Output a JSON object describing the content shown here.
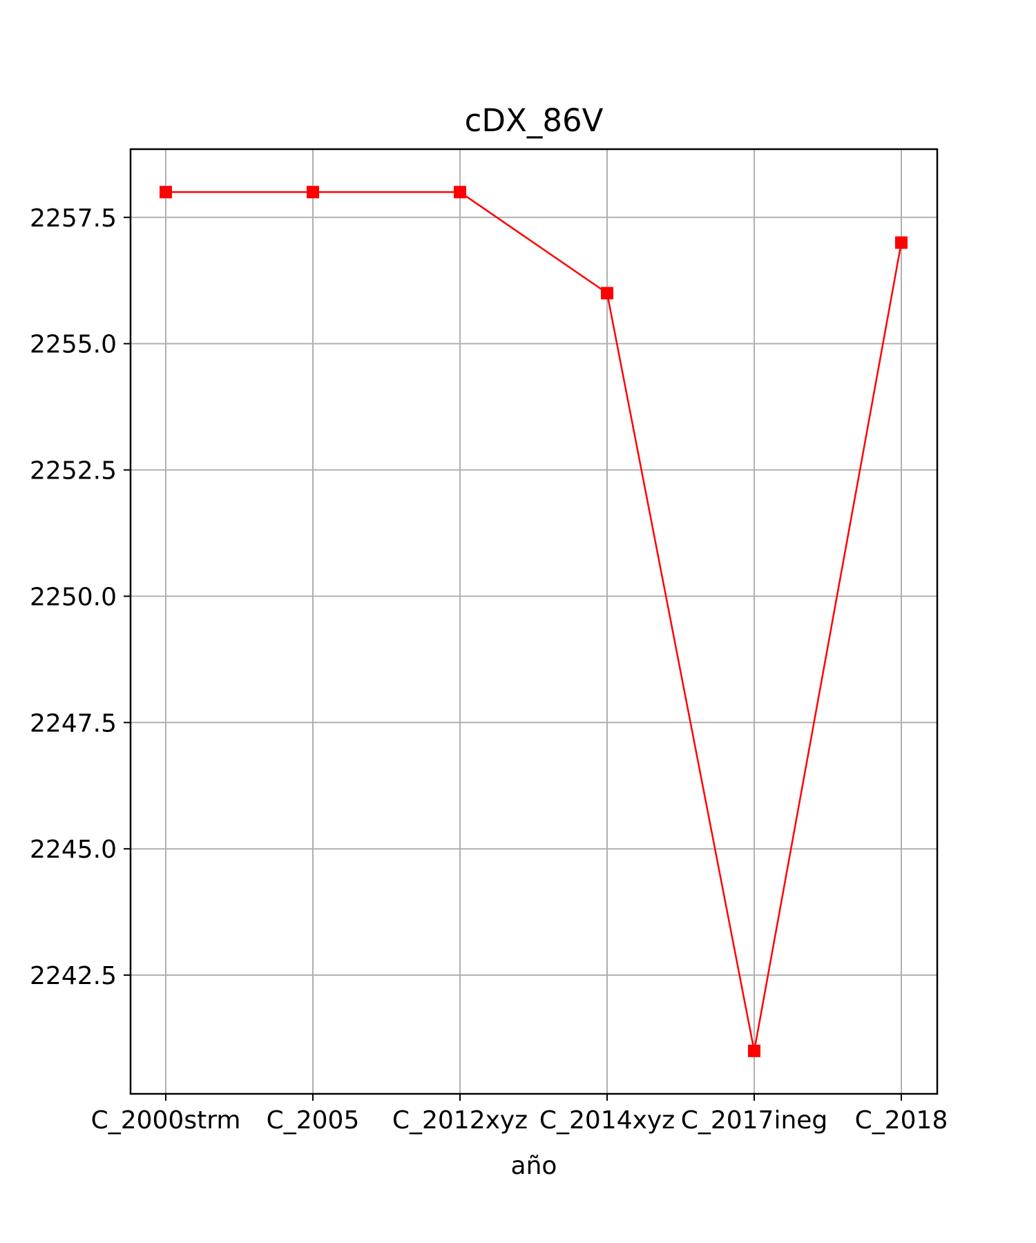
{
  "chart_data": {
    "type": "line",
    "title": "cDX_86V",
    "xlabel": "año",
    "ylabel": "",
    "categories": [
      "C_2000strm",
      "C_2005",
      "C_2012xyz",
      "C_2014xyz",
      "C_2017ineg",
      "C_2018"
    ],
    "series": [
      {
        "values": [
          2258,
          2258,
          2258,
          2256,
          2241,
          2257
        ],
        "color": "#ff0000",
        "marker": "square"
      }
    ],
    "ylim": [
      2240.15,
      2258.85
    ],
    "yticks": [
      2242.5,
      2245.0,
      2247.5,
      2250.0,
      2252.5,
      2255.0,
      2257.5
    ],
    "ytick_labels": [
      "2242.5",
      "2245.0",
      "2247.5",
      "2250.0",
      "2252.5",
      "2255.0",
      "2257.5"
    ],
    "grid": true,
    "grid_color": "#b0b0b0",
    "line_color": "#ff0000"
  }
}
